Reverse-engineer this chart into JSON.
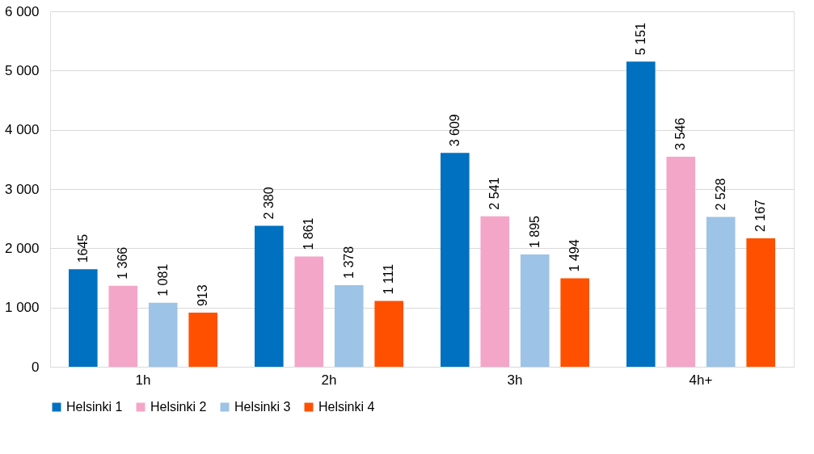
{
  "chart_data": {
    "type": "bar",
    "categories": [
      "1h",
      "2h",
      "3h",
      "4h+"
    ],
    "series": [
      {
        "name": "Helsinki 1",
        "color": "#0070c0",
        "values": [
          1645,
          2380,
          3609,
          5151
        ],
        "value_labels": [
          "1645",
          "2 380",
          "3 609",
          "5 151"
        ]
      },
      {
        "name": "Helsinki 2",
        "color": "#f4a6c8",
        "values": [
          1366,
          1861,
          2541,
          3546
        ],
        "value_labels": [
          "1 366",
          "1 861",
          "2 541",
          "3 546"
        ]
      },
      {
        "name": "Helsinki 3",
        "color": "#9dc3e6",
        "values": [
          1081,
          1378,
          1895,
          2528
        ],
        "value_labels": [
          "1 081",
          "1 378",
          "1 895",
          "2 528"
        ]
      },
      {
        "name": "Helsinki 4",
        "color": "#ff5000",
        "values": [
          913,
          1111,
          1494,
          2167
        ],
        "value_labels": [
          "913",
          "1 111",
          "1 494",
          "2 167"
        ]
      }
    ],
    "ylim": [
      0,
      6000
    ],
    "yticks": [
      {
        "value": 0,
        "label": "0"
      },
      {
        "value": 1000,
        "label": "1 000"
      },
      {
        "value": 2000,
        "label": "2 000"
      },
      {
        "value": 3000,
        "label": "3 000"
      },
      {
        "value": 4000,
        "label": "4 000"
      },
      {
        "value": 5000,
        "label": "5 000"
      },
      {
        "value": 6000,
        "label": "6 000"
      }
    ],
    "grid": "y",
    "legend": "bottom"
  }
}
